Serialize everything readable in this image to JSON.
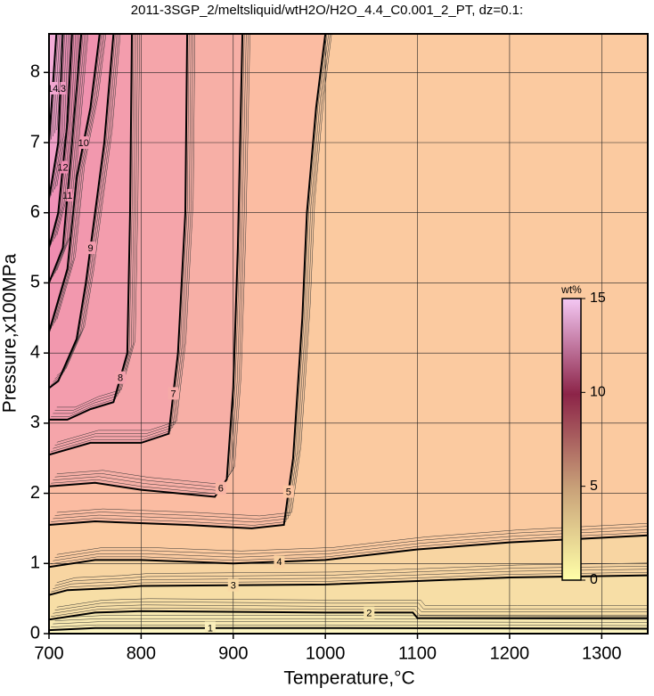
{
  "chart_data": {
    "type": "contour",
    "title": "2011-3SGP_2/meltsliquid/wtH2O/H2O_4.4_C0.001_2_PT, dz=0.1:",
    "xlabel": "Temperature,°C",
    "ylabel": "Pressure,x100MPa",
    "xlim": [
      700,
      1350
    ],
    "ylim": [
      0,
      8.55
    ],
    "xticks": [
      700,
      800,
      900,
      1000,
      1100,
      1200,
      1300
    ],
    "yticks": [
      0,
      1,
      2,
      3,
      4,
      5,
      6,
      7,
      8
    ],
    "grid": true,
    "contours": [
      {
        "level": 1,
        "x": [
          700,
          750,
          1000,
          1350
        ],
        "y": [
          0.05,
          0.08,
          0.08,
          0.07
        ]
      },
      {
        "level": 2,
        "x": [
          700,
          750,
          800,
          1000,
          1095,
          1100,
          1200,
          1350
        ],
        "y": [
          0.2,
          0.3,
          0.32,
          0.3,
          0.3,
          0.22,
          0.22,
          0.22
        ]
      },
      {
        "level": 3,
        "x": [
          700,
          720,
          770,
          800,
          1000,
          1100,
          1200,
          1350
        ],
        "y": [
          0.55,
          0.62,
          0.65,
          0.68,
          0.7,
          0.75,
          0.8,
          0.83
        ]
      },
      {
        "level": 4,
        "x": [
          700,
          750,
          800,
          900,
          1000,
          1100,
          1200,
          1350
        ],
        "y": [
          0.95,
          1.05,
          1.05,
          1.0,
          1.05,
          1.2,
          1.3,
          1.4
        ]
      },
      {
        "level": 5,
        "x": [
          700,
          750,
          850,
          920,
          955,
          965,
          975,
          980,
          990,
          1000
        ],
        "y": [
          1.55,
          1.6,
          1.55,
          1.5,
          1.55,
          2.5,
          4.5,
          6,
          7.5,
          8.55
        ]
      },
      {
        "level": 6,
        "x": [
          700,
          750,
          800,
          880,
          893,
          900,
          905,
          910
        ],
        "y": [
          2.1,
          2.15,
          2.05,
          1.95,
          2.2,
          3.5,
          5.5,
          8.55
        ]
      },
      {
        "level": 7,
        "x": [
          700,
          745,
          800,
          830,
          840,
          848,
          850
        ],
        "y": [
          2.55,
          2.72,
          2.72,
          2.85,
          4,
          6,
          8.55
        ]
      },
      {
        "level": 8,
        "x": [
          700,
          720,
          745,
          770,
          785,
          788,
          790
        ],
        "y": [
          3.05,
          3.05,
          3.2,
          3.3,
          4,
          6,
          8.55
        ]
      },
      {
        "level": 9,
        "x": [
          700,
          710,
          730,
          740,
          750,
          760,
          770
        ],
        "y": [
          3.5,
          3.6,
          4.2,
          5,
          6,
          7,
          8.55
        ]
      },
      {
        "level": 10,
        "x": [
          700,
          720,
          730,
          745,
          755
        ],
        "y": [
          4.3,
          5.2,
          6.5,
          7.5,
          8.55
        ]
      },
      {
        "level": 11,
        "x": [
          700,
          715,
          725,
          735
        ],
        "y": [
          5,
          5.5,
          7,
          8.55
        ]
      },
      {
        "level": 12,
        "x": [
          700,
          710,
          720,
          725
        ],
        "y": [
          5.5,
          6,
          7.3,
          8.55
        ]
      },
      {
        "level": 13,
        "x": [
          700,
          710,
          715
        ],
        "y": [
          6.2,
          7,
          8.55
        ]
      },
      {
        "level": 14,
        "x": [
          700,
          708
        ],
        "y": [
          7,
          8.55
        ]
      }
    ],
    "colorbar": {
      "label": "wt%",
      "lim": [
        0,
        15
      ],
      "ticks": [
        0,
        5,
        10,
        15
      ]
    }
  }
}
